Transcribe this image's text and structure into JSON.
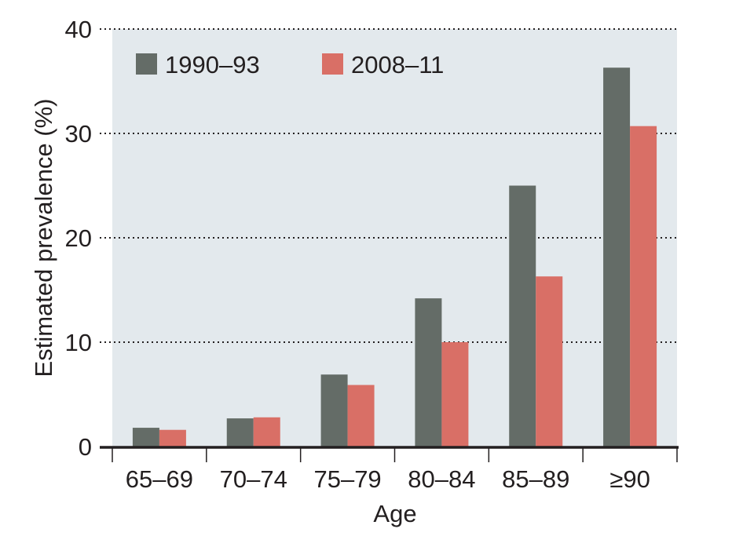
{
  "chart_data": {
    "type": "bar",
    "title": "",
    "xlabel": "Age",
    "ylabel": "Estimated prevalence (%)",
    "categories": [
      "65–69",
      "70–74",
      "75–79",
      "80–84",
      "85–89",
      "≥90"
    ],
    "ylim": [
      0,
      40
    ],
    "yticks": [
      "0",
      "10",
      "20",
      "30",
      "40"
    ],
    "grid": "horizontal dotted",
    "legend_position": "top-left",
    "series": [
      {
        "name": "1990–93",
        "color": "#646c67",
        "values": [
          1.8,
          2.7,
          6.9,
          14.2,
          25.0,
          36.3
        ]
      },
      {
        "name": "2008–11",
        "color": "#d96f66",
        "values": [
          1.6,
          2.8,
          5.9,
          10.0,
          16.3,
          30.7
        ]
      }
    ],
    "plot_background": "#e3e9ed"
  }
}
